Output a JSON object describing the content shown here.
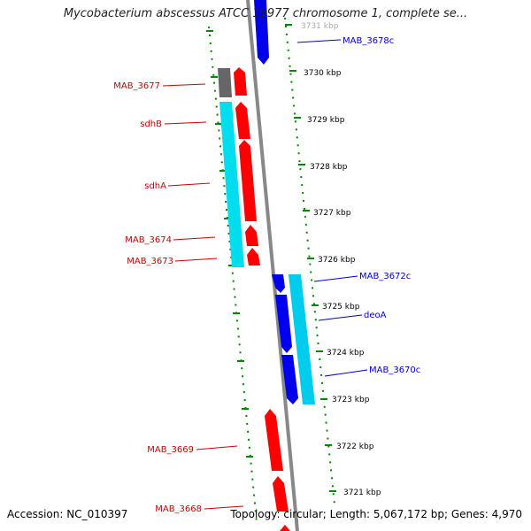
{
  "title": "Mycobacterium abscessus ATCC 19977 chromosome 1, complete se...",
  "accession": "Accession: NC_010397",
  "stats": "Topology: circular; Length: 5,067,172 bp; Genes: 4,970",
  "colors": {
    "forward_cds": "#ff0000",
    "reverse_cds": "#0000ee",
    "other_feature": "#666666",
    "operon": "#00ddee",
    "backbone": "#888888",
    "tick": "#008800",
    "label_forward": "#cc0000",
    "label_reverse": "#0000cc"
  },
  "ticks": [
    {
      "label": "3731 kbp"
    },
    {
      "label": "3730 kbp"
    },
    {
      "label": "3729 kbp"
    },
    {
      "label": "3728 kbp"
    },
    {
      "label": "3727 kbp"
    },
    {
      "label": "3726 kbp"
    },
    {
      "label": "3725 kbp"
    },
    {
      "label": "3724 kbp"
    },
    {
      "label": "3723 kbp"
    },
    {
      "label": "3722 kbp"
    },
    {
      "label": "3721 kbp"
    }
  ],
  "gene_labels": [
    {
      "text": "MAB_3678c",
      "strand": "reverse"
    },
    {
      "text": "MAB_3677",
      "strand": "forward"
    },
    {
      "text": "sdhB",
      "strand": "forward"
    },
    {
      "text": "sdhA",
      "strand": "forward"
    },
    {
      "text": "MAB_3674",
      "strand": "forward"
    },
    {
      "text": "MAB_3673",
      "strand": "forward"
    },
    {
      "text": "MAB_3672c",
      "strand": "reverse"
    },
    {
      "text": "deoA",
      "strand": "reverse"
    },
    {
      "text": "MAB_3670c",
      "strand": "reverse"
    },
    {
      "text": "MAB_3669",
      "strand": "forward"
    },
    {
      "text": "MAB_3668",
      "strand": "forward"
    }
  ]
}
